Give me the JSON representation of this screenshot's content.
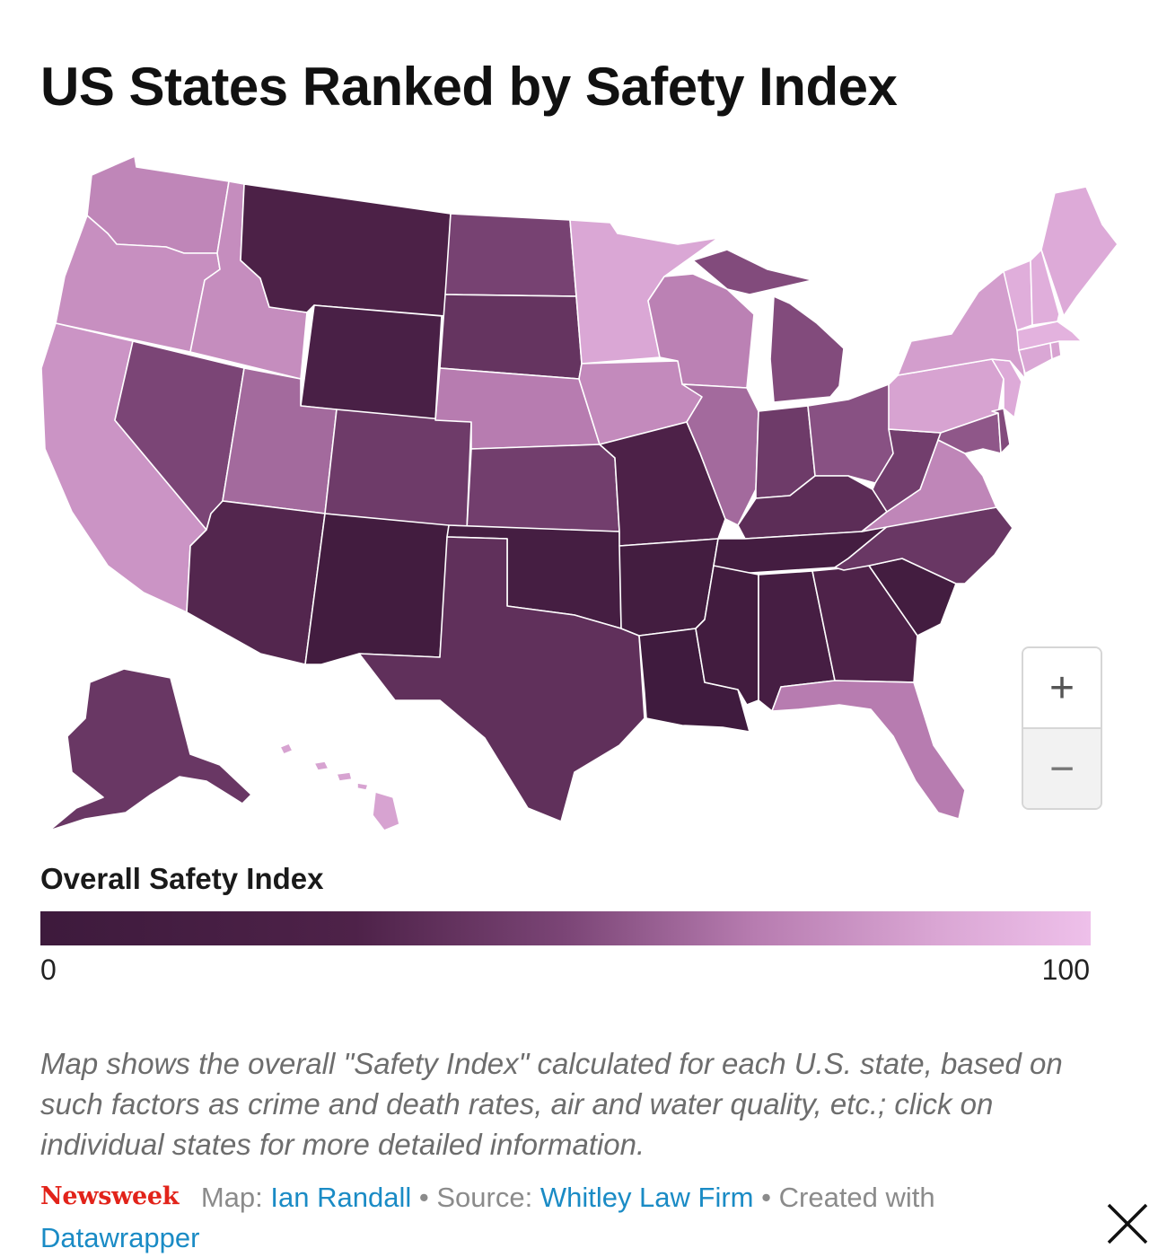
{
  "title": "US States Ranked by Safety Index",
  "map": {
    "zoom_in_label": "+",
    "zoom_out_label": "−",
    "color_scale": [
      "#3d1a3c",
      "#eec0ea"
    ],
    "states": {
      "WA": 72,
      "OR": 76,
      "CA": 78,
      "ID": 75,
      "NV": 50,
      "MT": 26,
      "WY": 22,
      "UT": 62,
      "AZ": 32,
      "CO": 44,
      "NM": 8,
      "ND": 48,
      "SD": 40,
      "NE": 68,
      "KS": 46,
      "OK": 14,
      "TX": 38,
      "MN": 86,
      "IA": 74,
      "MO": 28,
      "AR": 10,
      "LA": 4,
      "WI": 70,
      "IL": 62,
      "MI": 52,
      "IN": 44,
      "OH": 54,
      "KY": 36,
      "TN": 12,
      "MS": 8,
      "AL": 16,
      "GA": 30,
      "FL": 68,
      "SC": 10,
      "NC": 42,
      "VA": 72,
      "WV": 46,
      "PA": 84,
      "NY": 82,
      "ME": 88,
      "VT": 90,
      "NH": 90,
      "MA": 92,
      "CT": 86,
      "RI": 84,
      "NJ": 88,
      "DE": 52,
      "MD": 56,
      "AK": 42,
      "HI": 84
    }
  },
  "legend": {
    "title": "Overall Safety Index",
    "min": "0",
    "max": "100"
  },
  "description": "Map shows the overall \"Safety Index\" calculated for each U.S. state, based on such factors as crime and death rates, air and water quality, etc.; click on individual states for more detailed information.",
  "footer": {
    "logo": "Newsweek",
    "map_prefix": "Map:",
    "map_author": "Ian Randall",
    "separator": "•",
    "source_prefix": "Source:",
    "source_name": "Whitley Law Firm",
    "created_prefix": "Created with",
    "tool": "Datawrapper"
  }
}
